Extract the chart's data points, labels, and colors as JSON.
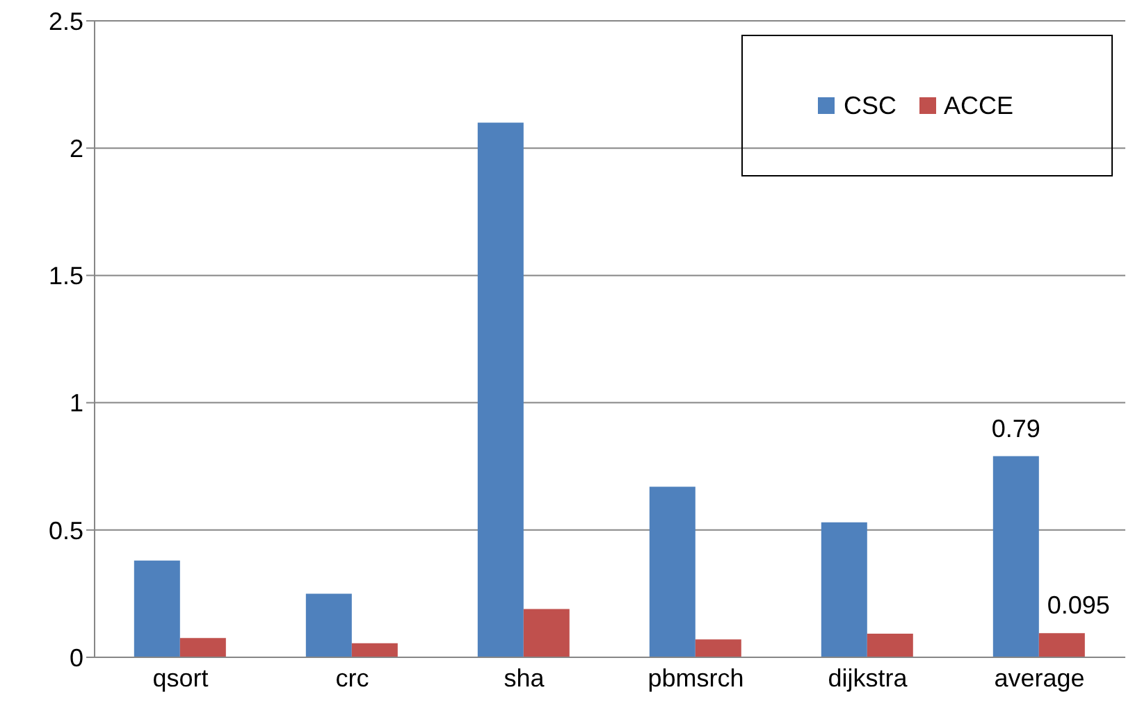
{
  "chart_data": {
    "type": "bar",
    "categories": [
      "qsort",
      "crc",
      "sha",
      "pbmsrch",
      "dijkstra",
      "average"
    ],
    "series": [
      {
        "name": "CSC",
        "color": "#4f81bd",
        "values": [
          0.38,
          0.25,
          2.1,
          0.67,
          0.53,
          0.79
        ],
        "value_labels": [
          null,
          null,
          null,
          null,
          null,
          "0.79"
        ]
      },
      {
        "name": "ACCE",
        "color": "#c0504d",
        "values": [
          0.076,
          0.055,
          0.19,
          0.07,
          0.093,
          0.095
        ],
        "value_labels": [
          null,
          null,
          null,
          null,
          null,
          "0.095"
        ]
      }
    ],
    "ylim": [
      0,
      2.5
    ],
    "yticks": [
      0,
      0.5,
      1,
      1.5,
      2,
      2.5
    ],
    "grid": "y",
    "legend": "top right"
  }
}
